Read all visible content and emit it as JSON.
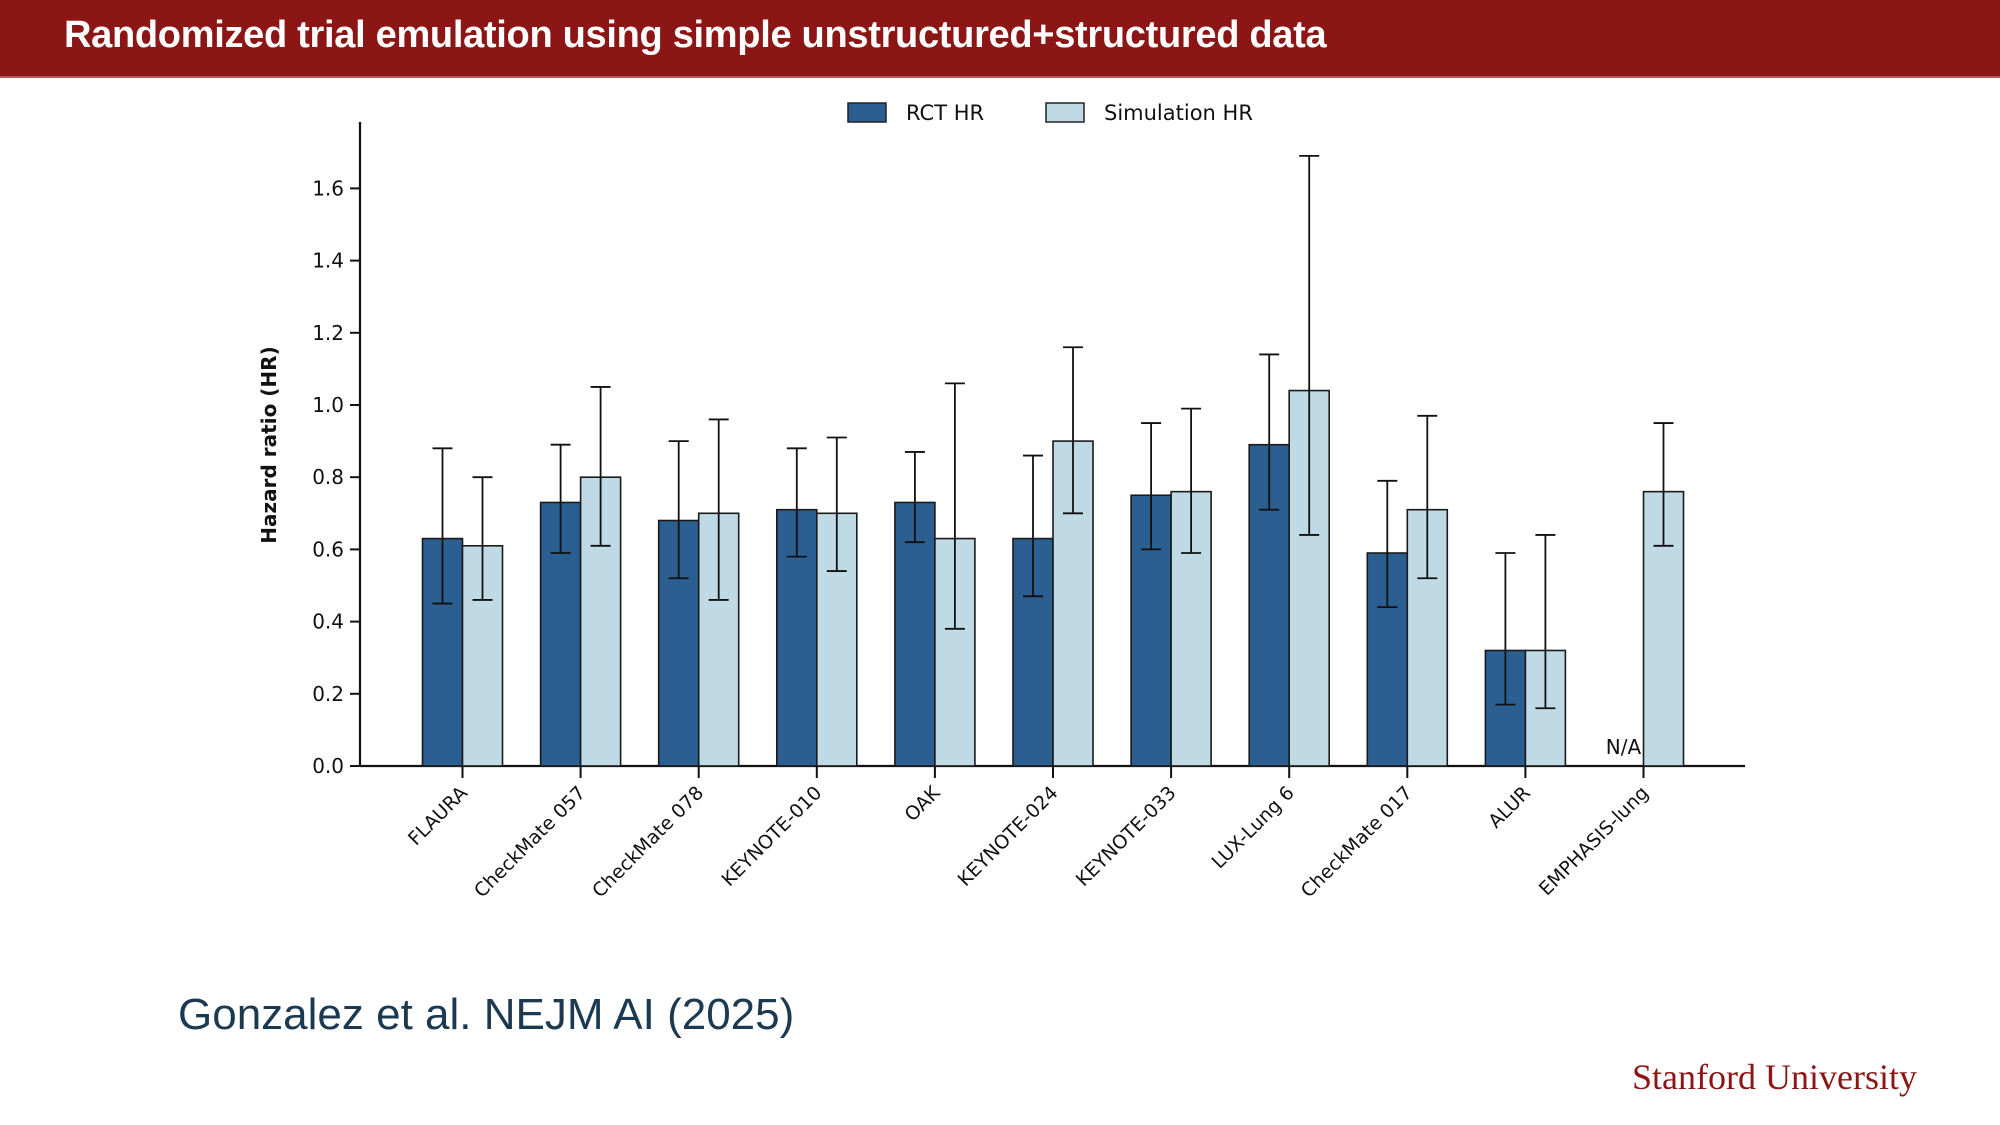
{
  "header": {
    "title": "Randomized trial emulation using simple unstructured+structured data"
  },
  "citation": "Gonzalez et al. NEJM AI (2025)",
  "footer": {
    "logo_text": "Stanford University"
  },
  "colors": {
    "brand": "#8c1515",
    "rct": "#2b5f91",
    "simulation": "#bfdae5"
  },
  "chart_data": {
    "type": "bar",
    "title": "",
    "xlabel": "",
    "ylabel": "Hazard ratio (HR)",
    "ylim": [
      0,
      1.75
    ],
    "yticks": [
      "0.0",
      "0.2",
      "0.4",
      "0.6",
      "0.8",
      "1.0",
      "1.2",
      "1.4",
      "1.6"
    ],
    "ytick_values": [
      0,
      0.2,
      0.4,
      0.6,
      0.8,
      1.0,
      1.2,
      1.4,
      1.6
    ],
    "grid": false,
    "legend_position": "top-center",
    "categories": [
      "FLAURA",
      "CheckMate 057",
      "CheckMate 078",
      "KEYNOTE-010",
      "OAK",
      "KEYNOTE-024",
      "KEYNOTE-033",
      "LUX-Lung 6",
      "CheckMate 017",
      "ALUR",
      "EMPHASIS-lung"
    ],
    "series": [
      {
        "name": "RCT HR",
        "values": [
          0.63,
          0.73,
          0.68,
          0.71,
          0.73,
          0.63,
          0.75,
          0.89,
          0.59,
          0.32,
          null
        ],
        "ci_lower": [
          0.45,
          0.59,
          0.52,
          0.58,
          0.62,
          0.47,
          0.6,
          0.71,
          0.44,
          0.17,
          null
        ],
        "ci_upper": [
          0.88,
          0.89,
          0.9,
          0.88,
          0.87,
          0.86,
          0.95,
          1.14,
          0.79,
          0.59,
          null
        ]
      },
      {
        "name": "Simulation HR",
        "values": [
          0.61,
          0.8,
          0.7,
          0.7,
          0.63,
          0.9,
          0.76,
          1.04,
          0.71,
          0.32,
          0.76
        ],
        "ci_lower": [
          0.46,
          0.61,
          0.46,
          0.54,
          0.38,
          0.7,
          0.59,
          0.64,
          0.52,
          0.16,
          0.61
        ],
        "ci_upper": [
          0.8,
          1.05,
          0.96,
          0.91,
          1.06,
          1.16,
          0.99,
          1.69,
          0.97,
          0.64,
          0.95
        ]
      }
    ],
    "annotations": [
      {
        "category": "EMPHASIS-lung",
        "series": "RCT HR",
        "text": "N/A"
      }
    ]
  }
}
